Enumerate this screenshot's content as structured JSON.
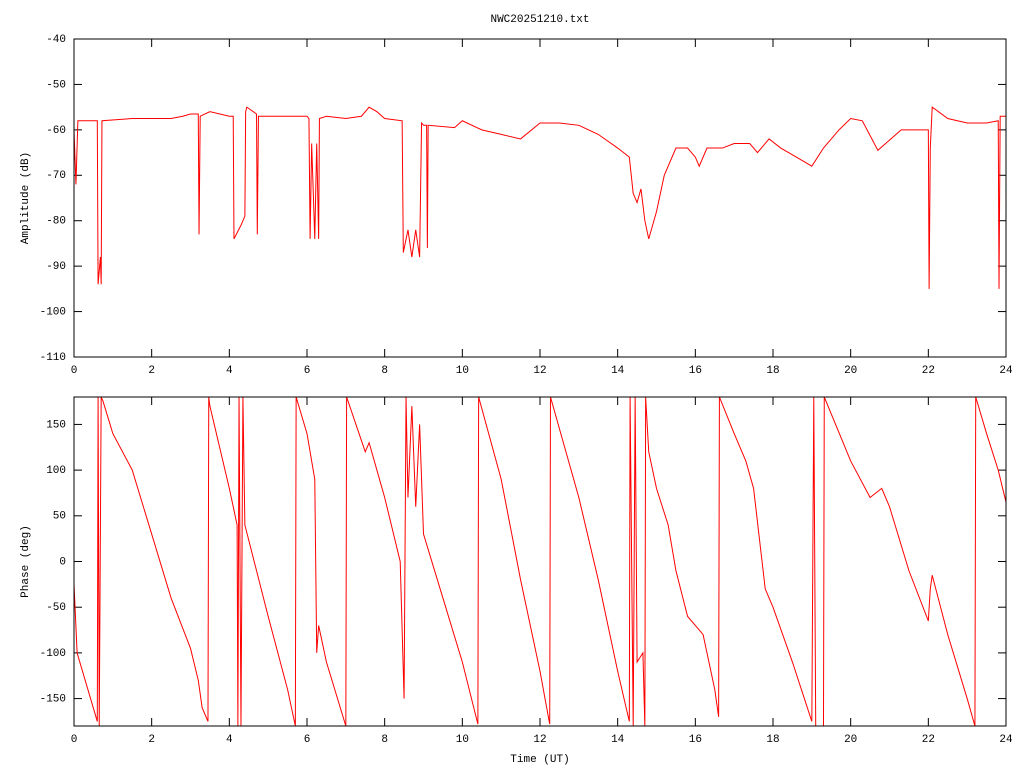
{
  "chart_data": [
    {
      "type": "line",
      "title": "NWC20251210.txt",
      "ylabel": "Amplitude (dB)",
      "xlim": [
        0,
        24
      ],
      "xticks": [
        0,
        2,
        4,
        6,
        8,
        10,
        12,
        14,
        16,
        18,
        20,
        22,
        24
      ],
      "ylim": [
        -110,
        -40
      ],
      "yticks": [
        -110,
        -100,
        -90,
        -80,
        -70,
        -60,
        -50,
        -40
      ],
      "grid": false,
      "series": [
        {
          "color": "#ff0000",
          "x": [
            0,
            0.05,
            0.1,
            0.6,
            0.62,
            0.68,
            0.7,
            0.72,
            1.5,
            2.5,
            2.8,
            3.0,
            3.2,
            3.22,
            3.25,
            3.5,
            4.0,
            4.1,
            4.12,
            4.3,
            4.4,
            4.42,
            4.45,
            4.7,
            4.72,
            4.75,
            5.5,
            6.0,
            6.05,
            6.08,
            6.12,
            6.2,
            6.25,
            6.3,
            6.32,
            6.5,
            7.0,
            7.4,
            7.6,
            7.8,
            8.0,
            8.45,
            8.48,
            8.6,
            8.7,
            8.8,
            8.9,
            8.95,
            9.0,
            9.08,
            9.1,
            9.12,
            9.8,
            10.0,
            10.5,
            11.0,
            11.5,
            12.0,
            12.5,
            13.0,
            13.5,
            14.0,
            14.3,
            14.4,
            14.5,
            14.6,
            14.7,
            14.8,
            15.0,
            15.2,
            15.5,
            15.8,
            16.0,
            16.1,
            16.3,
            16.7,
            17.0,
            17.4,
            17.6,
            17.9,
            18.2,
            18.6,
            19.0,
            19.3,
            19.7,
            20.0,
            20.3,
            20.7,
            20.9,
            21.3,
            21.9,
            22.0,
            22.02,
            22.05,
            22.1,
            22.5,
            23.0,
            23.5,
            23.8,
            23.82,
            23.85,
            24.0
          ],
          "values": [
            -60,
            -72,
            -58,
            -58,
            -94,
            -88,
            -94,
            -58,
            -57.5,
            -57.5,
            -57,
            -56.5,
            -56.5,
            -83,
            -57,
            -56,
            -57,
            -57,
            -84,
            -81,
            -79,
            -56,
            -55,
            -56.5,
            -83,
            -57,
            -57,
            -57,
            -57.5,
            -84,
            -63,
            -84,
            -63,
            -84,
            -57.5,
            -57,
            -57.5,
            -57,
            -55,
            -56,
            -57.5,
            -58,
            -87,
            -82,
            -88,
            -82,
            -88,
            -58.5,
            -59,
            -59,
            -86,
            -59,
            -59.5,
            -58,
            -60,
            -61,
            -62,
            -58.5,
            -58.5,
            -59,
            -61,
            -64,
            -66,
            -74,
            -76,
            -73,
            -80,
            -84,
            -78,
            -70,
            -64,
            -64,
            -66,
            -68,
            -64,
            -64,
            -63,
            -63,
            -65,
            -62,
            -64,
            -66,
            -68,
            -64,
            -60,
            -57.5,
            -58,
            -64.5,
            -63,
            -60,
            -60,
            -60,
            -95,
            -64,
            -55,
            -57.5,
            -58.5,
            -58.5,
            -58,
            -95,
            -57,
            -57
          ]
        }
      ]
    },
    {
      "type": "line",
      "ylabel": "Phase (deg)",
      "xlabel": "Time (UT)",
      "xlim": [
        0,
        24
      ],
      "xticks": [
        0,
        2,
        4,
        6,
        8,
        10,
        12,
        14,
        16,
        18,
        20,
        22,
        24
      ],
      "ylim": [
        -180,
        180
      ],
      "yticks": [
        -150,
        -100,
        -50,
        0,
        50,
        100,
        150
      ],
      "grid": false,
      "series": [
        {
          "color": "#ff0000",
          "x": [
            0,
            0.08,
            0.6,
            0.62,
            0.65,
            0.7,
            0.75,
            1.0,
            1.5,
            2.0,
            2.5,
            3.0,
            3.2,
            3.3,
            3.45,
            3.47,
            3.5,
            4.0,
            4.2,
            4.22,
            4.25,
            4.3,
            4.35,
            4.4,
            5.0,
            5.5,
            5.7,
            5.72,
            6.0,
            6.2,
            6.25,
            6.3,
            6.5,
            7.0,
            7.02,
            7.5,
            7.6,
            8.0,
            8.4,
            8.5,
            8.55,
            8.6,
            8.7,
            8.8,
            8.9,
            9.0,
            9.5,
            10.0,
            10.4,
            10.42,
            11.0,
            11.5,
            12.0,
            12.25,
            12.27,
            13.0,
            13.5,
            14.0,
            14.3,
            14.32,
            14.4,
            14.45,
            14.5,
            14.65,
            14.7,
            14.72,
            14.8,
            15.0,
            15.3,
            15.5,
            15.8,
            16.0,
            16.2,
            16.5,
            16.6,
            16.62,
            17.0,
            17.3,
            17.5,
            17.8,
            18.0,
            18.5,
            19.0,
            19.05,
            19.1,
            19.3,
            19.32,
            20.0,
            20.5,
            20.8,
            21.0,
            21.5,
            22.0,
            22.05,
            22.1,
            22.5,
            23.0,
            23.2,
            23.22,
            23.5,
            23.8,
            24.0
          ],
          "values": [
            -25,
            -100,
            -175,
            180,
            -180,
            180,
            175,
            140,
            100,
            30,
            -40,
            -95,
            -130,
            -160,
            -175,
            180,
            170,
            80,
            40,
            -180,
            180,
            -180,
            180,
            40,
            -60,
            -140,
            -180,
            180,
            140,
            90,
            -100,
            -70,
            -110,
            -180,
            180,
            120,
            130,
            70,
            0,
            -150,
            180,
            70,
            170,
            60,
            150,
            30,
            -40,
            -110,
            -178,
            180,
            90,
            -20,
            -120,
            -178,
            180,
            70,
            -20,
            -120,
            -175,
            180,
            -180,
            180,
            -110,
            -100,
            -180,
            180,
            120,
            80,
            40,
            -10,
            -60,
            -70,
            -80,
            -140,
            -170,
            180,
            140,
            110,
            80,
            -30,
            -50,
            -110,
            -175,
            180,
            -180,
            -180,
            180,
            110,
            70,
            80,
            60,
            -10,
            -65,
            -30,
            -15,
            -80,
            -150,
            -180,
            180,
            140,
            100,
            65
          ]
        }
      ]
    }
  ]
}
